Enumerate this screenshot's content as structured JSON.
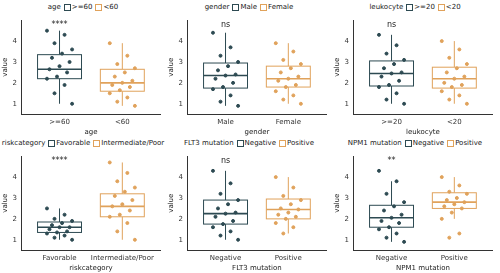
{
  "chart_data": [
    {
      "type": "box",
      "legend_title": "age",
      "x_label": "age",
      "y_label": "value",
      "annotation": "****",
      "categories": [
        ">=60",
        "<60"
      ],
      "colors": [
        "#2d4a52",
        "#e0a25b"
      ],
      "boxes": [
        {
          "min": 1.0,
          "q1": 2.2,
          "median": 2.65,
          "q3": 3.35,
          "max": 4.5
        },
        {
          "min": 0.9,
          "q1": 1.6,
          "median": 2.0,
          "q3": 2.65,
          "max": 3.9
        }
      ],
      "points": [
        [
          4.5,
          4.3,
          3.9,
          3.6,
          3.4,
          3.2,
          3.0,
          2.8,
          2.65,
          2.5,
          2.3,
          2.2,
          1.9,
          1.5,
          1.0
        ],
        [
          3.9,
          3.3,
          2.9,
          2.7,
          2.5,
          2.3,
          2.1,
          2.0,
          1.9,
          1.8,
          1.65,
          1.5,
          1.3,
          1.1,
          0.9
        ]
      ],
      "ylim": [
        0.5,
        5.0
      ],
      "yticks": [
        1,
        2,
        3,
        4
      ],
      "legend": "top",
      "grid": false
    },
    {
      "type": "box",
      "legend_title": "gender",
      "x_label": "gender",
      "y_label": "value",
      "annotation": "ns",
      "categories": [
        "Male",
        "Female"
      ],
      "colors": [
        "#2d4a52",
        "#e0a25b"
      ],
      "boxes": [
        {
          "min": 0.9,
          "q1": 1.75,
          "median": 2.35,
          "q3": 2.95,
          "max": 4.4
        },
        {
          "min": 1.0,
          "q1": 1.8,
          "median": 2.2,
          "q3": 2.8,
          "max": 3.9
        }
      ],
      "points": [
        [
          4.4,
          3.7,
          3.3,
          3.0,
          2.8,
          2.6,
          2.4,
          2.35,
          2.2,
          2.0,
          1.8,
          1.7,
          1.4,
          1.1,
          0.9
        ],
        [
          3.9,
          3.5,
          3.1,
          2.9,
          2.7,
          2.5,
          2.3,
          2.2,
          2.1,
          1.9,
          1.8,
          1.6,
          1.4,
          1.2,
          1.0
        ]
      ],
      "ylim": [
        0.5,
        5.0
      ],
      "yticks": [
        1,
        2,
        3,
        4
      ],
      "legend": "top",
      "grid": false
    },
    {
      "type": "box",
      "legend_title": "leukocyte",
      "x_label": "leukocyte",
      "y_label": "value",
      "annotation": "ns",
      "categories": [
        ">=20",
        "<20"
      ],
      "colors": [
        "#2d4a52",
        "#e0a25b"
      ],
      "boxes": [
        {
          "min": 1.0,
          "q1": 1.85,
          "median": 2.45,
          "q3": 3.05,
          "max": 4.3
        },
        {
          "min": 1.0,
          "q1": 1.75,
          "median": 2.2,
          "q3": 2.75,
          "max": 4.0
        }
      ],
      "points": [
        [
          4.3,
          3.8,
          3.4,
          3.1,
          2.9,
          2.7,
          2.5,
          2.45,
          2.3,
          2.1,
          1.9,
          1.8,
          1.5,
          1.2,
          1.0
        ],
        [
          4.0,
          3.6,
          3.2,
          2.9,
          2.7,
          2.5,
          2.3,
          2.2,
          2.0,
          1.9,
          1.8,
          1.6,
          1.4,
          1.2,
          1.0
        ]
      ],
      "ylim": [
        0.5,
        5.0
      ],
      "yticks": [
        1,
        2,
        3,
        4
      ],
      "legend": "top",
      "grid": false
    },
    {
      "type": "box",
      "legend_title": "riskcategory",
      "x_label": "riskcategory",
      "y_label": "value",
      "annotation": "****",
      "categories": [
        "Favorable",
        "Intermediate/Poor"
      ],
      "colors": [
        "#2d4a52",
        "#e0a25b"
      ],
      "boxes": [
        {
          "min": 1.0,
          "q1": 1.35,
          "median": 1.6,
          "q3": 1.85,
          "max": 2.5
        },
        {
          "min": 1.0,
          "q1": 2.1,
          "median": 2.6,
          "q3": 3.2,
          "max": 4.7
        }
      ],
      "points": [
        [
          2.5,
          2.2,
          2.0,
          1.9,
          1.8,
          1.7,
          1.6,
          1.6,
          1.5,
          1.4,
          1.35,
          1.3,
          1.2,
          1.1,
          1.0
        ],
        [
          4.7,
          4.2,
          3.8,
          3.5,
          3.3,
          3.1,
          2.9,
          2.7,
          2.6,
          2.4,
          2.2,
          2.1,
          1.8,
          1.4,
          1.0
        ]
      ],
      "ylim": [
        0.5,
        5.0
      ],
      "yticks": [
        1,
        2,
        3,
        4
      ],
      "legend": "top",
      "grid": false
    },
    {
      "type": "box",
      "legend_title": "FLT3 mutation",
      "x_label": "FLT3 mutation",
      "y_label": "value",
      "annotation": "ns",
      "categories": [
        "Negative",
        "Positive"
      ],
      "colors": [
        "#2d4a52",
        "#e0a25b"
      ],
      "boxes": [
        {
          "min": 1.0,
          "q1": 1.75,
          "median": 2.25,
          "q3": 2.9,
          "max": 4.3
        },
        {
          "min": 1.3,
          "q1": 2.0,
          "median": 2.45,
          "q3": 2.95,
          "max": 4.0
        }
      ],
      "points": [
        [
          4.3,
          3.7,
          3.2,
          2.9,
          2.7,
          2.5,
          2.3,
          2.25,
          2.1,
          1.9,
          1.75,
          1.6,
          1.4,
          1.2,
          1.0
        ],
        [
          4.0,
          3.5,
          3.1,
          2.9,
          2.7,
          2.5,
          2.45,
          2.3,
          2.2,
          2.1,
          2.0,
          1.8,
          1.6,
          1.3
        ]
      ],
      "ylim": [
        0.5,
        5.0
      ],
      "yticks": [
        1,
        2,
        3,
        4
      ],
      "legend": "top",
      "grid": false
    },
    {
      "type": "box",
      "legend_title": "NPM1 mutation",
      "x_label": "NPM1 mutation",
      "y_label": "value",
      "annotation": "**",
      "categories": [
        "Negative",
        "Positive"
      ],
      "colors": [
        "#2d4a52",
        "#e0a25b"
      ],
      "boxes": [
        {
          "min": 0.9,
          "q1": 1.6,
          "median": 2.05,
          "q3": 2.65,
          "max": 3.8
        },
        {
          "min": 2.0,
          "q1": 2.5,
          "median": 2.8,
          "q3": 3.25,
          "max": 4.0
        }
      ],
      "points": [
        [
          4.3,
          3.8,
          3.2,
          2.8,
          2.6,
          2.4,
          2.2,
          2.05,
          1.9,
          1.8,
          1.6,
          1.5,
          1.3,
          1.1,
          0.9
        ],
        [
          4.0,
          3.6,
          3.3,
          3.2,
          3.0,
          2.9,
          2.8,
          2.7,
          2.6,
          2.5,
          2.3,
          2.0,
          1.3,
          1.1
        ]
      ],
      "ylim": [
        0.5,
        5.0
      ],
      "yticks": [
        1,
        2,
        3,
        4
      ],
      "legend": "top",
      "grid": false
    }
  ]
}
